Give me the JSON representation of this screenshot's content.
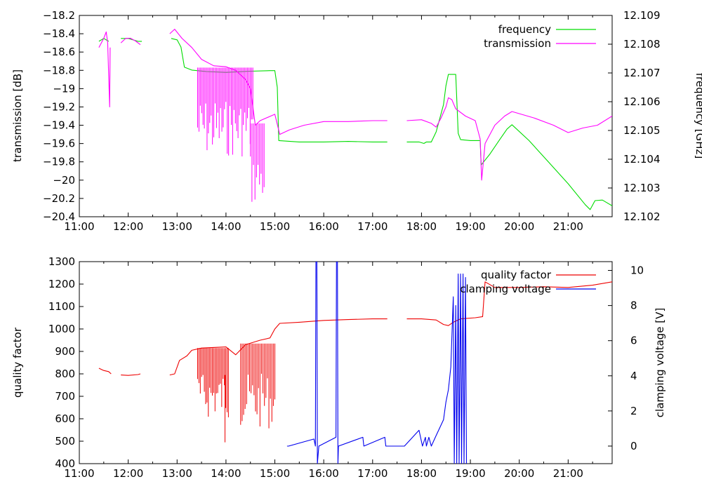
{
  "chart_data": [
    {
      "type": "line",
      "title": "",
      "xlabel": "",
      "ylabel": "transmission [dB]",
      "y2label": "frequency [GHz]",
      "xlim": [
        11,
        21.9
      ],
      "ylim": [
        -20.4,
        -18.2
      ],
      "y2lim": [
        12.102,
        12.109
      ],
      "xticks": [
        11,
        12,
        13,
        14,
        15,
        16,
        17,
        18,
        19,
        20,
        21
      ],
      "xtick_labels": [
        "11:00",
        "12:00",
        "13:00",
        "14:00",
        "15:00",
        "16:00",
        "17:00",
        "18:00",
        "19:00",
        "20:00",
        "21:00"
      ],
      "yticks": [
        -20.4,
        -20.2,
        -20,
        -19.8,
        -19.6,
        -19.4,
        -19.2,
        -19,
        -18.8,
        -18.6,
        -18.4,
        -18.2
      ],
      "ytick_labels": [
        "−20.4",
        "−20.2",
        "−20",
        "−19.8",
        "−19.6",
        "−19.4",
        "−19.2",
        "−19",
        "−18.8",
        "−18.6",
        "−18.4",
        "−18.2"
      ],
      "y2ticks": [
        12.102,
        12.103,
        12.104,
        12.105,
        12.106,
        12.107,
        12.108,
        12.109
      ],
      "y2tick_labels": [
        "12.102",
        "12.103",
        "12.104",
        "12.105",
        "12.106",
        "12.107",
        "12.108",
        "12.109"
      ],
      "legend_position": "top-right",
      "series": [
        {
          "name": "frequency",
          "axis": "y2",
          "color": "#00dd00",
          "segments": [
            [
              [
                11.4,
                12.1081
              ],
              [
                11.5,
                12.1082
              ],
              [
                11.6,
                12.1081
              ]
            ],
            [
              [
                11.85,
                12.1082
              ],
              [
                12.0,
                12.1082
              ],
              [
                12.2,
                12.1081
              ],
              [
                12.28,
                12.1081
              ]
            ],
            [
              [
                12.88,
                12.1082
              ],
              [
                13.0,
                12.10815
              ],
              [
                13.08,
                12.1079
              ],
              [
                13.15,
                12.1072
              ],
              [
                13.3,
                12.1071
              ],
              [
                13.6,
                12.10705
              ],
              [
                14.0,
                12.10702
              ],
              [
                14.5,
                12.10706
              ],
              [
                14.9,
                12.10708
              ],
              [
                15.0,
                12.10708
              ],
              [
                15.05,
                12.1065
              ],
              [
                15.08,
                12.10465
              ],
              [
                15.5,
                12.1046
              ],
              [
                16.0,
                12.1046
              ],
              [
                16.5,
                12.10462
              ],
              [
                17.0,
                12.1046
              ],
              [
                17.3,
                12.1046
              ]
            ],
            [
              [
                17.7,
                12.1046
              ],
              [
                17.95,
                12.1046
              ],
              [
                18.05,
                12.10455
              ],
              [
                18.1,
                12.1046
              ],
              [
                18.2,
                12.1046
              ],
              [
                18.3,
                12.10495
              ],
              [
                18.45,
                12.1059
              ],
              [
                18.5,
                12.10655
              ],
              [
                18.55,
                12.10695
              ],
              [
                18.7,
                12.10695
              ],
              [
                18.75,
                12.1049
              ],
              [
                18.8,
                12.10468
              ],
              [
                19.0,
                12.10465
              ],
              [
                19.2,
                12.10465
              ],
              [
                19.22,
                12.1038
              ],
              [
                19.4,
                12.10418
              ],
              [
                19.6,
                12.10468
              ],
              [
                19.75,
                12.10505
              ],
              [
                19.85,
                12.1052
              ],
              [
                20.2,
                12.10465
              ],
              [
                20.6,
                12.1039
              ],
              [
                21.0,
                12.10315
              ],
              [
                21.35,
                12.10242
              ],
              [
                21.45,
                12.10225
              ],
              [
                21.55,
                12.10256
              ],
              [
                21.7,
                12.10258
              ],
              [
                21.9,
                12.10238
              ]
            ]
          ]
        },
        {
          "name": "transmission",
          "axis": "y",
          "color": "#ff00ff",
          "segments": [
            [
              [
                11.4,
                -18.55
              ],
              [
                11.5,
                -18.45
              ],
              [
                11.55,
                -18.38
              ],
              [
                11.58,
                -18.5
              ],
              [
                11.62,
                -19.2
              ],
              [
                11.63,
                -18.55
              ]
            ],
            [
              [
                11.85,
                -18.5
              ],
              [
                11.95,
                -18.45
              ],
              [
                12.05,
                -18.45
              ],
              [
                12.15,
                -18.48
              ],
              [
                12.25,
                -18.52
              ]
            ],
            [
              [
                12.85,
                -18.4
              ],
              [
                12.95,
                -18.35
              ],
              [
                13.1,
                -18.45
              ],
              [
                13.3,
                -18.55
              ],
              [
                13.5,
                -18.68
              ],
              [
                13.75,
                -18.75
              ],
              [
                14.0,
                -18.76
              ],
              [
                14.2,
                -18.8
              ],
              [
                14.4,
                -18.9
              ],
              [
                14.5,
                -19.0
              ],
              [
                14.6,
                -19.4
              ],
              [
                14.7,
                -19.35
              ],
              [
                15.0,
                -19.28
              ],
              [
                15.1,
                -19.5
              ],
              [
                15.3,
                -19.45
              ],
              [
                15.6,
                -19.4
              ],
              [
                16.0,
                -19.36
              ],
              [
                16.5,
                -19.36
              ],
              [
                17.0,
                -19.35
              ],
              [
                17.3,
                -19.35
              ]
            ],
            [
              [
                17.7,
                -19.35
              ],
              [
                18.0,
                -19.34
              ],
              [
                18.2,
                -19.38
              ],
              [
                18.3,
                -19.42
              ],
              [
                18.4,
                -19.32
              ],
              [
                18.5,
                -19.2
              ],
              [
                18.55,
                -19.1
              ],
              [
                18.62,
                -19.12
              ],
              [
                18.7,
                -19.22
              ],
              [
                18.9,
                -19.3
              ],
              [
                19.1,
                -19.35
              ],
              [
                19.2,
                -19.55
              ],
              [
                19.23,
                -20.0
              ],
              [
                19.3,
                -19.6
              ],
              [
                19.5,
                -19.4
              ],
              [
                19.7,
                -19.3
              ],
              [
                19.85,
                -19.25
              ],
              [
                20.3,
                -19.32
              ],
              [
                20.7,
                -19.4
              ],
              [
                21.0,
                -19.48
              ],
              [
                21.3,
                -19.43
              ],
              [
                21.6,
                -19.4
              ],
              [
                21.9,
                -19.3
              ]
            ]
          ],
          "spike_bands": [
            {
              "x_start": 13.42,
              "x_end": 14.55,
              "count": 42,
              "base": -18.77,
              "min": -19.75
            },
            {
              "x_start": 14.5,
              "x_end": 14.78,
              "count": 10,
              "base": -19.38,
              "min": -20.28
            }
          ]
        }
      ]
    },
    {
      "type": "line",
      "title": "",
      "xlabel": "",
      "ylabel": "quality factor",
      "y2label": "clamping voltage [V]",
      "xlim": [
        11,
        21.9
      ],
      "ylim": [
        400,
        1300
      ],
      "y2lim": [
        -1,
        10.5
      ],
      "xticks": [
        11,
        12,
        13,
        14,
        15,
        16,
        17,
        18,
        19,
        20,
        21
      ],
      "xtick_labels": [
        "11:00",
        "12:00",
        "13:00",
        "14:00",
        "15:00",
        "16:00",
        "17:00",
        "18:00",
        "19:00",
        "20:00",
        "21:00"
      ],
      "yticks": [
        400,
        500,
        600,
        700,
        800,
        900,
        1000,
        1100,
        1200,
        1300
      ],
      "ytick_labels": [
        "400",
        "500",
        "600",
        "700",
        "800",
        "900",
        "1000",
        "1100",
        "1200",
        "1300"
      ],
      "y2ticks": [
        0,
        2,
        4,
        6,
        8,
        10
      ],
      "y2tick_labels": [
        "0",
        "2",
        "4",
        "6",
        "8",
        "10"
      ],
      "legend_position": "top-right",
      "series": [
        {
          "name": "quality factor",
          "axis": "y",
          "color": "#ee0000",
          "segments": [
            [
              [
                11.4,
                825
              ],
              [
                11.5,
                815
              ],
              [
                11.6,
                810
              ],
              [
                11.65,
                800
              ]
            ],
            [
              [
                11.85,
                795
              ],
              [
                12.0,
                793
              ],
              [
                12.2,
                797
              ],
              [
                12.25,
                800
              ]
            ],
            [
              [
                12.85,
                795
              ],
              [
                12.95,
                800
              ],
              [
                13.05,
                860
              ],
              [
                13.2,
                880
              ],
              [
                13.3,
                905
              ],
              [
                13.5,
                915
              ],
              [
                14.0,
                920
              ],
              [
                14.2,
                885
              ],
              [
                14.4,
                930
              ],
              [
                14.7,
                950
              ],
              [
                14.9,
                960
              ],
              [
                15.0,
                1000
              ],
              [
                15.1,
                1025
              ],
              [
                15.5,
                1030
              ],
              [
                16.0,
                1038
              ],
              [
                16.5,
                1042
              ],
              [
                17.0,
                1045
              ],
              [
                17.3,
                1045
              ]
            ],
            [
              [
                17.7,
                1045
              ],
              [
                18.0,
                1045
              ],
              [
                18.3,
                1040
              ],
              [
                18.45,
                1020
              ],
              [
                18.55,
                1015
              ],
              [
                18.65,
                1030
              ],
              [
                18.8,
                1045
              ],
              [
                19.1,
                1050
              ],
              [
                19.25,
                1055
              ],
              [
                19.3,
                1210
              ],
              [
                19.5,
                1185
              ],
              [
                20.0,
                1185
              ],
              [
                20.5,
                1188
              ],
              [
                21.0,
                1185
              ],
              [
                21.5,
                1195
              ],
              [
                21.9,
                1210
              ]
            ]
          ],
          "spike_bands": [
            {
              "x_start": 13.42,
              "x_end": 14.05,
              "count": 24,
              "base": 915,
              "min": 600
            },
            {
              "x_start": 14.3,
              "x_end": 15.0,
              "count": 24,
              "base": 935,
              "min": 555
            }
          ],
          "isolated_spikes": [
            {
              "x": 13.98,
              "min": 495
            }
          ]
        },
        {
          "name": "clamping voltage",
          "axis": "y2",
          "color": "#0000ee",
          "segments": [
            [
              [
                15.25,
                0
              ],
              [
                15.28,
                0
              ],
              [
                15.8,
                0.4
              ],
              [
                15.83,
                0
              ],
              [
                15.84,
                10.5
              ],
              [
                15.86,
                10.5
              ],
              [
                15.87,
                -1
              ],
              [
                15.9,
                0
              ],
              [
                16.25,
                0.5
              ],
              [
                16.26,
                10.5
              ],
              [
                16.28,
                10.5
              ],
              [
                16.29,
                -1
              ],
              [
                16.3,
                0
              ],
              [
                16.8,
                0.5
              ],
              [
                16.82,
                0
              ],
              [
                17.25,
                0.5
              ],
              [
                17.27,
                0
              ],
              [
                17.65,
                0
              ],
              [
                17.95,
                0.9
              ],
              [
                18.02,
                0
              ],
              [
                18.08,
                0.5
              ],
              [
                18.1,
                0
              ],
              [
                18.15,
                0.5
              ],
              [
                18.2,
                0
              ],
              [
                18.3,
                0.6
              ],
              [
                18.35,
                0.9
              ],
              [
                18.45,
                1.5
              ],
              [
                18.5,
                2.5
              ],
              [
                18.55,
                3.2
              ],
              [
                18.6,
                4.5
              ],
              [
                18.65,
                8.5
              ],
              [
                18.67,
                -1
              ],
              [
                18.7,
                8.0
              ],
              [
                18.72,
                -1
              ],
              [
                18.75,
                9.8
              ],
              [
                18.77,
                -1
              ],
              [
                18.8,
                9.8
              ],
              [
                18.82,
                -1
              ],
              [
                18.85,
                9.8
              ],
              [
                18.87,
                -1
              ],
              [
                18.9,
                9.6
              ],
              [
                18.92,
                -1
              ]
            ]
          ]
        }
      ]
    }
  ]
}
